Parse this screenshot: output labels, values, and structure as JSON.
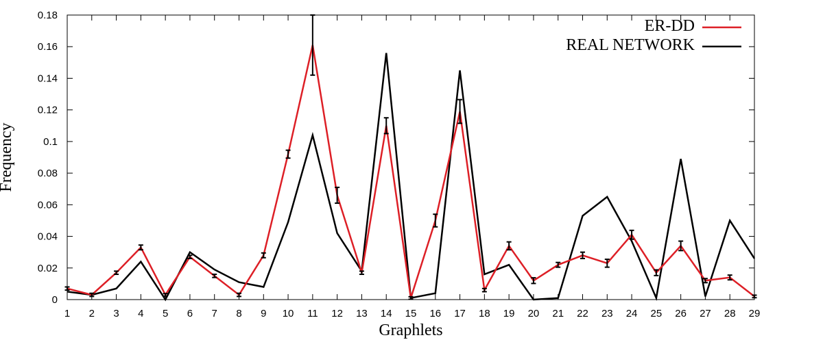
{
  "chart_data": {
    "type": "line",
    "xlabel": "Graphlets",
    "ylabel": "Frequency",
    "x": [
      1,
      2,
      3,
      4,
      5,
      6,
      7,
      8,
      9,
      10,
      11,
      12,
      13,
      14,
      15,
      16,
      17,
      18,
      19,
      20,
      21,
      22,
      23,
      24,
      25,
      26,
      27,
      28,
      29
    ],
    "xlim": [
      1,
      29
    ],
    "ylim": [
      0,
      0.18
    ],
    "yticks": [
      0,
      0.02,
      0.04,
      0.06,
      0.08,
      0.1,
      0.12,
      0.14,
      0.16,
      0.18
    ],
    "ytick_labels": [
      "0",
      "0.02",
      "0.04",
      "0.06",
      "0.08",
      "0.1",
      "0.12",
      "0.14",
      "0.16",
      "0.18"
    ],
    "legend_position": "top-right",
    "grid": false,
    "series": [
      {
        "name": "ER-DD",
        "color": "#dd1f26",
        "values": [
          0.007,
          0.003,
          0.017,
          0.033,
          0.003,
          0.027,
          0.015,
          0.003,
          0.028,
          0.092,
          0.161,
          0.066,
          0.017,
          0.11,
          0.001,
          0.05,
          0.119,
          0.006,
          0.034,
          0.012,
          0.022,
          0.028,
          0.023,
          0.041,
          0.017,
          0.034,
          0.012,
          0.014,
          0.002
        ],
        "errors": [
          0.001,
          0.001,
          0.001,
          0.0015,
          0.0008,
          0.001,
          0.001,
          0.001,
          0.0015,
          0.0025,
          0.019,
          0.005,
          0.001,
          0.005,
          0.0008,
          0.004,
          0.0075,
          0.001,
          0.0025,
          0.0018,
          0.0015,
          0.002,
          0.0025,
          0.0028,
          0.0018,
          0.003,
          0.0013,
          0.0015,
          0.0008
        ]
      },
      {
        "name": "REAL NETWORK",
        "color": "#000000",
        "values": [
          0.005,
          0.003,
          0.007,
          0.024,
          0.0,
          0.03,
          0.019,
          0.011,
          0.008,
          0.049,
          0.104,
          0.042,
          0.018,
          0.156,
          0.001,
          0.004,
          0.145,
          0.016,
          0.022,
          0.0,
          0.001,
          0.053,
          0.065,
          0.037,
          0.001,
          0.089,
          0.002,
          0.05,
          0.026
        ]
      }
    ]
  }
}
